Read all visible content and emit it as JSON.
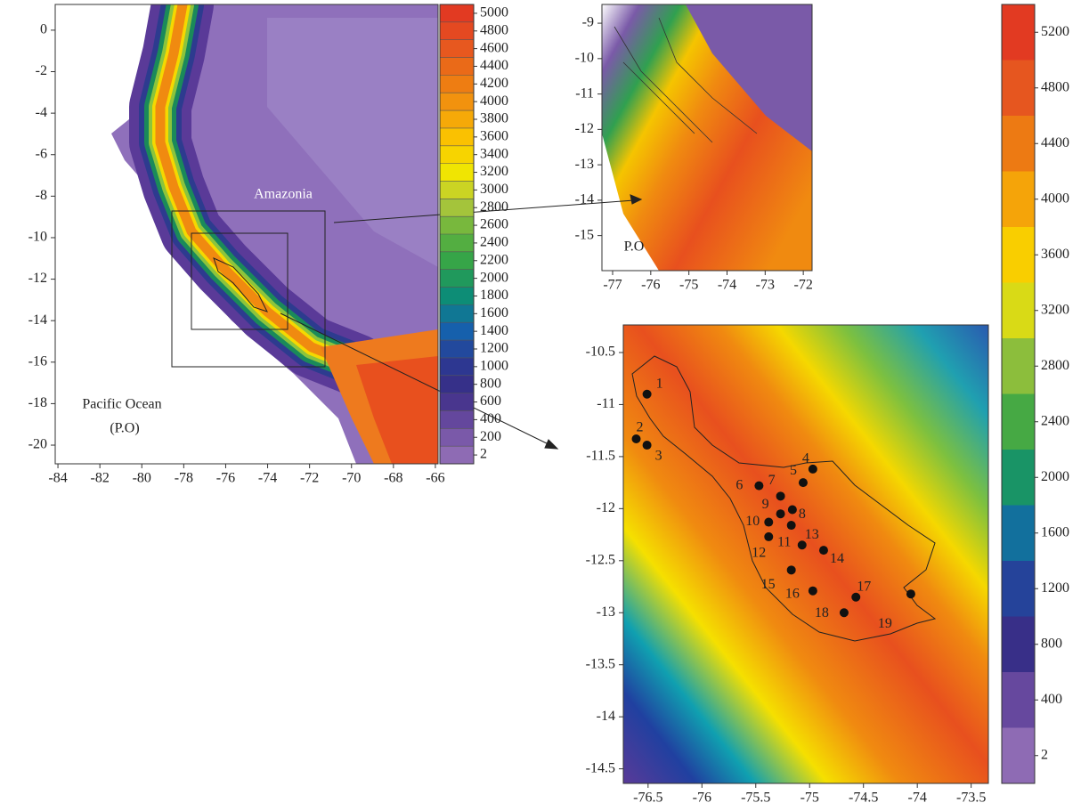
{
  "maps": [
    {
      "xlim": [
        -84.13,
        -65.87
      ],
      "ylim": [
        -20.9,
        1.24
      ],
      "xticks": [
        -84,
        -82,
        -80,
        -78,
        -76,
        -74,
        -72,
        -70,
        -68,
        -66
      ],
      "yticks": [
        0,
        -2,
        -4,
        -6,
        -8,
        -10,
        -12,
        -14,
        -16,
        -18,
        -20
      ],
      "labels": [
        "Amazonia",
        "Pacific Ocean",
        "(P.O)"
      ]
    },
    {
      "xlim": [
        -77.28,
        -71.77
      ],
      "ylim": [
        -15.99,
        -8.47
      ],
      "xticks": [
        -77,
        -76,
        -75,
        -74,
        -73,
        -72
      ],
      "yticks": [
        -9,
        -10,
        -11,
        -12,
        -13,
        -14,
        -15
      ],
      "labels": [
        "P.O"
      ]
    },
    {
      "xlim": [
        -76.73,
        -73.34
      ],
      "ylim": [
        -14.64,
        -10.235
      ],
      "xticks": [
        -76.5,
        -76,
        -75.5,
        -75,
        -74.5,
        -74,
        -73.5
      ],
      "yticks": [
        -10.5,
        -11,
        -11.5,
        -12,
        -12.5,
        -13,
        -13.5,
        -14,
        -14.5
      ],
      "stations": [
        {
          "label": "1",
          "lon": -76.51,
          "lat": -10.9
        },
        {
          "label": "2",
          "lon": -76.61,
          "lat": -11.33
        },
        {
          "label": "3",
          "lon": -76.51,
          "lat": -11.39
        },
        {
          "label": "4",
          "lon": -74.97,
          "lat": -11.62
        },
        {
          "label": "5",
          "lon": -75.06,
          "lat": -11.75
        },
        {
          "label": "6",
          "lon": -75.47,
          "lat": -11.78
        },
        {
          "label": "7",
          "lon": -75.27,
          "lat": -11.88
        },
        {
          "label": "8",
          "lon": -75.16,
          "lat": -12.01
        },
        {
          "label": "9",
          "lon": -75.27,
          "lat": -12.05
        },
        {
          "label": "10",
          "lon": -75.38,
          "lat": -12.13
        },
        {
          "label": "11",
          "lon": -75.17,
          "lat": -12.16
        },
        {
          "label": "12",
          "lon": -75.38,
          "lat": -12.27
        },
        {
          "label": "13",
          "lon": -75.07,
          "lat": -12.35
        },
        {
          "label": "14",
          "lon": -74.87,
          "lat": -12.4
        },
        {
          "label": "15",
          "lon": -75.17,
          "lat": -12.59
        },
        {
          "label": "16",
          "lon": -74.97,
          "lat": -12.79
        },
        {
          "label": "17",
          "lon": -74.57,
          "lat": -12.85
        },
        {
          "label": "18",
          "lon": -74.68,
          "lat": -13.0
        },
        {
          "label": "19",
          "lon": -74.06,
          "lat": -12.82
        }
      ]
    }
  ],
  "colorbars": [
    {
      "levels": [
        5000,
        4800,
        4600,
        4400,
        4200,
        4000,
        3800,
        3600,
        3400,
        3200,
        3000,
        2800,
        2600,
        2400,
        2200,
        2000,
        1800,
        1600,
        1400,
        1200,
        1000,
        800,
        600,
        400,
        200,
        2
      ]
    },
    {
      "levels": [
        5200,
        4800,
        4400,
        4000,
        3600,
        3200,
        2800,
        2400,
        2000,
        1600,
        1200,
        800,
        400,
        2
      ]
    }
  ],
  "colormap": [
    "#8e6bb4",
    "#6a4aa0",
    "#3a2d86",
    "#2a3a94",
    "#1463ae",
    "#0c8c78",
    "#2ea24a",
    "#62b23e",
    "#b0c83a",
    "#f3e600",
    "#fbc400",
    "#f39a0c",
    "#ec7414",
    "#e65420",
    "#e23a22"
  ]
}
